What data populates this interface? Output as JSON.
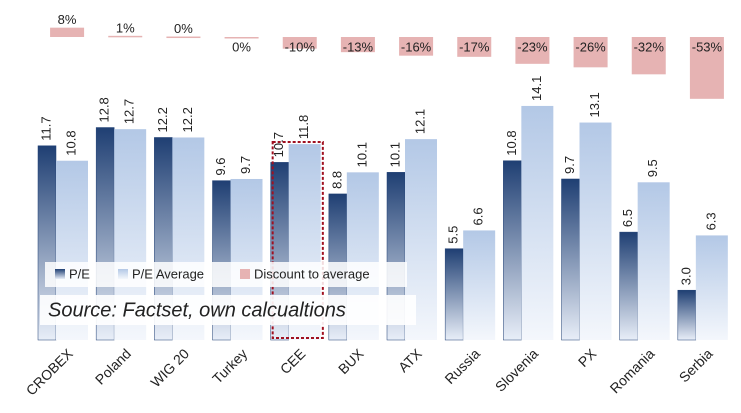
{
  "chart_data": {
    "type": "bar",
    "categories": [
      "CROBEX",
      "Poland",
      "WIG 20",
      "Turkey",
      "CEE",
      "BUX",
      "ATX",
      "Russia",
      "Slovenia",
      "PX",
      "Romania",
      "Serbia"
    ],
    "series": [
      {
        "name": "P/E",
        "color": "#1f3f73",
        "values": [
          11.7,
          12.8,
          12.2,
          9.6,
          10.7,
          8.8,
          10.1,
          5.5,
          10.8,
          9.7,
          6.5,
          3.0
        ],
        "value_labels": [
          "11.7",
          "12.8",
          "12.2",
          "9.6",
          "10.7",
          "8.8",
          "10.1",
          "5.5",
          "10.8",
          "9.7",
          "6.5",
          "3.0"
        ]
      },
      {
        "name": "P/E Average",
        "color": "#b8cce8",
        "values": [
          10.8,
          12.7,
          12.2,
          9.7,
          11.8,
          10.1,
          12.1,
          6.6,
          14.1,
          13.1,
          9.5,
          6.3
        ],
        "value_labels": [
          "10.8",
          "12.7",
          "12.2",
          "9.7",
          "11.8",
          "10.1",
          "12.1",
          "6.6",
          "14.1",
          "13.1",
          "9.5",
          "6.3"
        ]
      },
      {
        "name": "Discount to average",
        "color": "#e6b3b3",
        "axis": "y2",
        "values": [
          8,
          1,
          0.4,
          -0.4,
          -10,
          -13,
          -16,
          -17,
          -23,
          -26,
          -32,
          -53
        ],
        "value_labels": [
          "8%",
          "1%",
          "0%",
          "0%",
          "-10%",
          "-13%",
          "-16%",
          "-17%",
          "-23%",
          "-26%",
          "-32%",
          "-53%"
        ]
      }
    ],
    "ylim": [
      0,
      15
    ],
    "y2lim": [
      -60,
      15
    ],
    "legend": "bottom-left",
    "annotation": "Source: Factset, own calcualtions",
    "highlight": "CEE"
  }
}
